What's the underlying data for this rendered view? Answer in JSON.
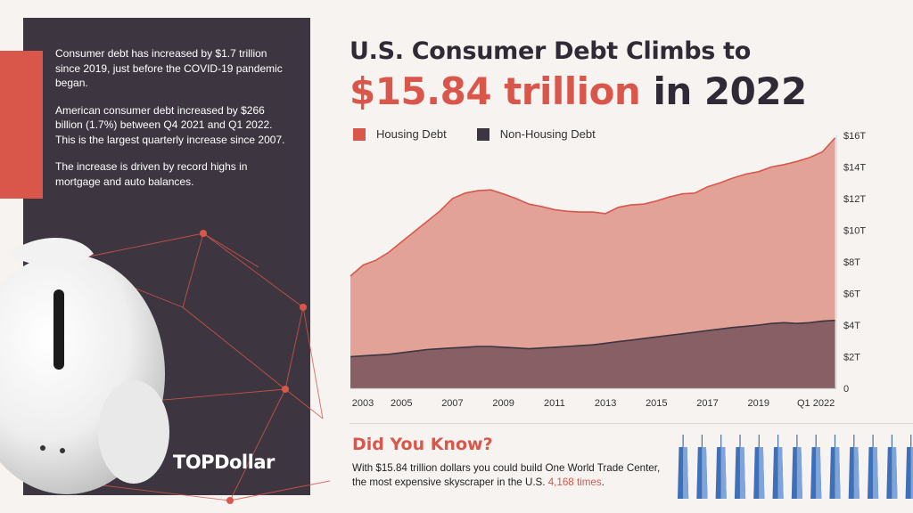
{
  "facts": {
    "p1": "Consumer debt has increased by $1.7 trillion since 2019, just before the COVID-19 pandemic began.",
    "p2": "American consumer debt increased by $266 billion (1.7%) between Q4 2021 and Q1 2022. This is the largest quarterly increase since 2007.",
    "p3": "The increase is driven by record highs in mortgage and auto balances."
  },
  "brand": "TOPDollar",
  "title": {
    "line1": "U.S. Consumer Debt Climbs to",
    "line2_highlight": "$15.84 trillion",
    "line2_rest": "in 2022"
  },
  "did_you_know": {
    "heading": "Did You Know?",
    "text_before": "With $15.84 trillion dollars you could build One World Trade Center, the most expensive skyscraper in the U.S. ",
    "highlight": "4,168 times",
    "text_after": "."
  },
  "colors": {
    "housing": "#e3a298",
    "housing_line": "#d9574a",
    "non_housing": "#875f64",
    "non_housing_line": "#3d3540",
    "accent": "#d9574a",
    "dark": "#3d3540"
  },
  "chart_data": {
    "type": "area",
    "stacked": true,
    "x": [
      2003.0,
      2003.5,
      2004.0,
      2004.5,
      2005.0,
      2005.5,
      2006.0,
      2006.5,
      2007.0,
      2007.5,
      2008.0,
      2008.5,
      2009.0,
      2009.5,
      2010.0,
      2010.5,
      2011.0,
      2011.5,
      2012.0,
      2012.5,
      2013.0,
      2013.5,
      2014.0,
      2014.5,
      2015.0,
      2015.5,
      2016.0,
      2016.5,
      2017.0,
      2017.5,
      2018.0,
      2018.5,
      2019.0,
      2019.5,
      2020.0,
      2020.5,
      2021.0,
      2021.5,
      2022.0
    ],
    "x_tick_labels": [
      "2003",
      "2005",
      "2007",
      "2009",
      "2011",
      "2013",
      "2015",
      "2017",
      "2019",
      "Q1 2022"
    ],
    "x_tick_values": [
      2003,
      2005,
      2007,
      2009,
      2011,
      2013,
      2015,
      2017,
      2019,
      2021.25
    ],
    "y_tick_labels": [
      "0",
      "$2T",
      "$4T",
      "$6T",
      "$8T",
      "$10T",
      "$12T",
      "$14T",
      "$16T"
    ],
    "ylim": [
      0,
      16
    ],
    "xlim": [
      2003,
      2022.05
    ],
    "legend_position": "top-left",
    "series": [
      {
        "name": "Non-Housing Debt",
        "values": [
          2.0,
          2.05,
          2.1,
          2.15,
          2.25,
          2.35,
          2.45,
          2.5,
          2.55,
          2.6,
          2.65,
          2.65,
          2.6,
          2.55,
          2.5,
          2.55,
          2.6,
          2.65,
          2.7,
          2.75,
          2.85,
          2.95,
          3.05,
          3.15,
          3.25,
          3.35,
          3.45,
          3.55,
          3.65,
          3.75,
          3.85,
          3.92,
          4.0,
          4.1,
          4.15,
          4.1,
          4.15,
          4.25,
          4.3
        ]
      },
      {
        "name": "Housing Debt",
        "values": [
          5.1,
          5.75,
          6.0,
          6.45,
          7.0,
          7.55,
          8.1,
          8.7,
          9.45,
          9.75,
          9.85,
          9.9,
          9.7,
          9.45,
          9.15,
          8.95,
          8.7,
          8.55,
          8.45,
          8.4,
          8.2,
          8.5,
          8.55,
          8.5,
          8.6,
          8.75,
          8.85,
          8.8,
          9.1,
          9.25,
          9.45,
          9.63,
          9.7,
          9.9,
          10.0,
          10.25,
          10.45,
          10.7,
          11.54
        ]
      }
    ],
    "total_final": 15.84
  }
}
